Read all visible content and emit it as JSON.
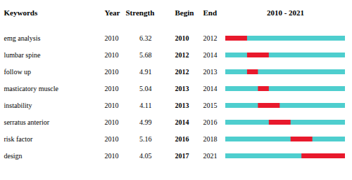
{
  "chart_data": {
    "type": "bar",
    "orientation": "horizontal",
    "title": "2010 - 2021",
    "columns": [
      "Keywords",
      "Year",
      "Strength",
      "Begin",
      "End"
    ],
    "categories": [
      "emg analysis",
      "lumbar spine",
      "follow up",
      "masticatory muscle",
      "instability",
      "serratus anterior",
      "risk factor",
      "design"
    ],
    "year": [
      2010,
      2010,
      2010,
      2010,
      2010,
      2010,
      2010,
      2010
    ],
    "strength": [
      6.32,
      5.68,
      4.91,
      5.04,
      4.11,
      4.99,
      5.16,
      4.05
    ],
    "series": [
      {
        "color": "#4ECECE",
        "begin": [
          2010,
          2010,
          2010,
          2010,
          2010,
          2010,
          2010,
          2010
        ],
        "end": [
          2021,
          2021,
          2021,
          2021,
          2021,
          2021,
          2021,
          2021
        ]
      },
      {
        "color": "#E8192C",
        "begin": [
          2010,
          2012,
          2012,
          2013,
          2013,
          2014,
          2016,
          2017
        ],
        "end": [
          2012,
          2014,
          2013,
          2014,
          2015,
          2016,
          2018,
          2021
        ]
      }
    ],
    "xlim": [
      2010,
      2021
    ],
    "tick_labels": false
  }
}
